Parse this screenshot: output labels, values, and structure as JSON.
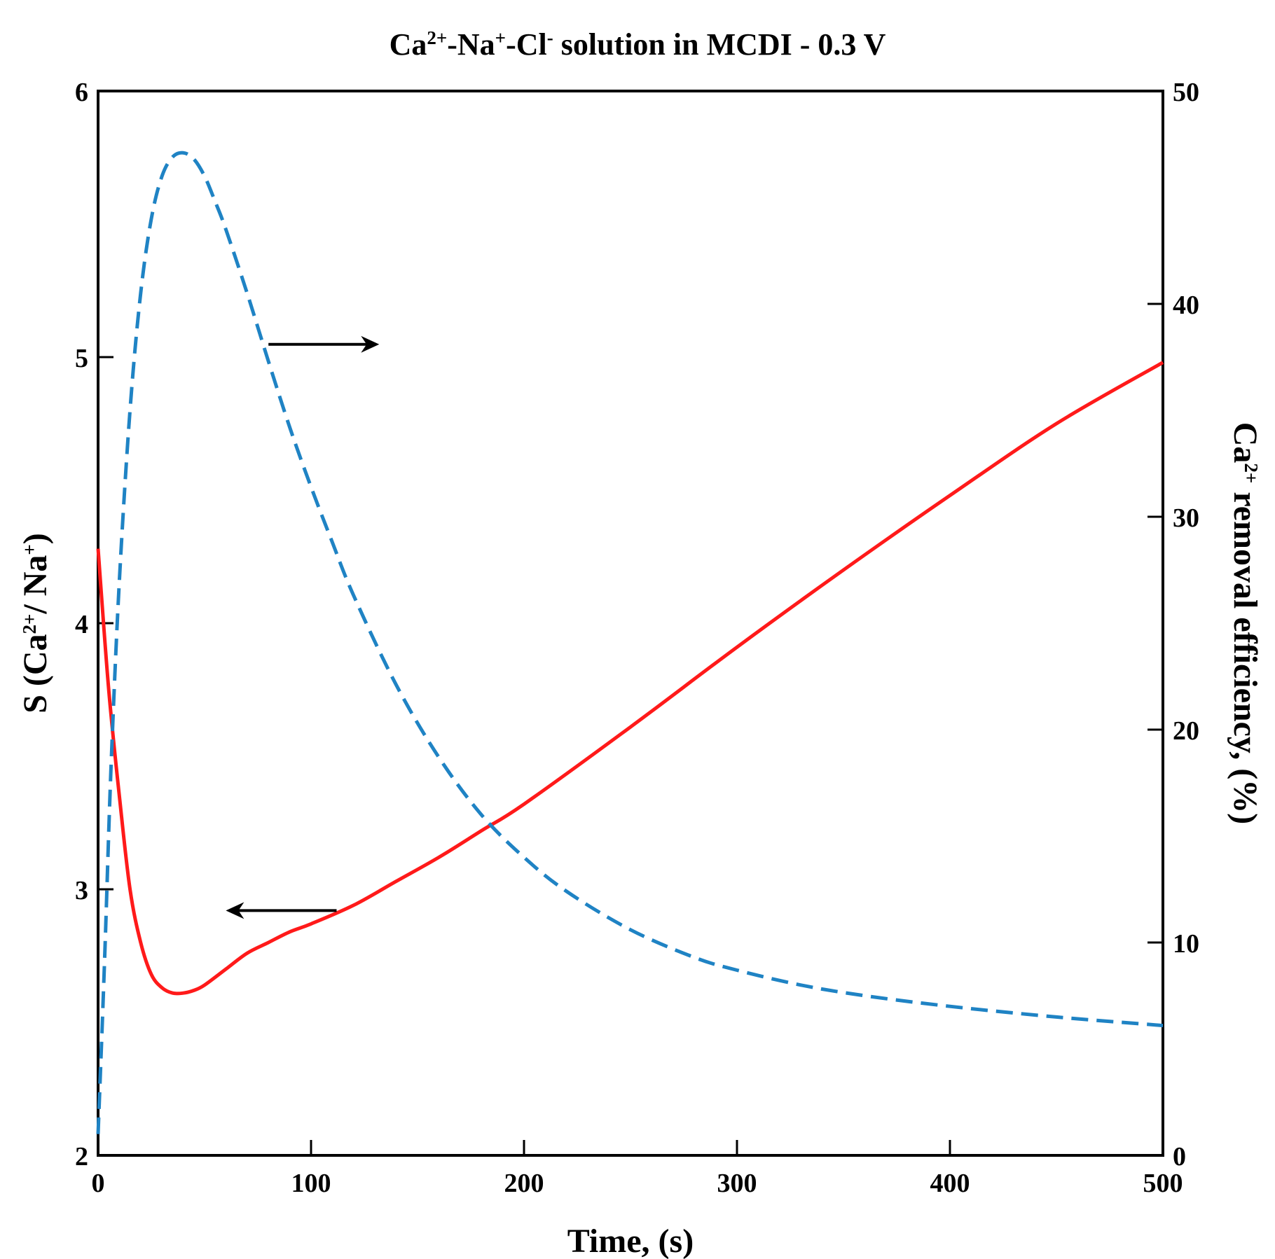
{
  "chart_data": {
    "type": "line",
    "title": {
      "parts": [
        {
          "text": "Ca",
          "sup": "2+"
        },
        {
          "text": "-Na",
          "sup": "+"
        },
        {
          "text": "-Cl",
          "sup": "-"
        },
        {
          "text": " solution in MCDI - 0.3 V",
          "sup": ""
        }
      ]
    },
    "xlabel": "Time, (s)",
    "ylabel_left": {
      "parts": [
        {
          "text": "S (Ca",
          "sup": "2+"
        },
        {
          "text": "/ Na",
          "sup": "+"
        },
        {
          "text": ")",
          "sup": ""
        }
      ]
    },
    "ylabel_right": {
      "parts": [
        {
          "text": "Ca",
          "sup": "2+"
        },
        {
          "text": " removal efficiency, (%)",
          "sup": ""
        }
      ]
    },
    "xlim": [
      0,
      500
    ],
    "ylim_left": [
      2,
      6
    ],
    "ylim_right": [
      0,
      50
    ],
    "x_ticks": [
      "0",
      "100",
      "200",
      "300",
      "400",
      "500"
    ],
    "y_ticks_left": [
      "2",
      "3",
      "4",
      "5",
      "6"
    ],
    "y_ticks_right": [
      "0",
      "10",
      "20",
      "30",
      "40",
      "50"
    ],
    "grid": false,
    "series": [
      {
        "name": "S (Ca2+/Na+)",
        "axis": "left",
        "color": "#ff1a1a",
        "style": "solid",
        "x": [
          0,
          5,
          10,
          15,
          20,
          25,
          30,
          35,
          40,
          45,
          50,
          60,
          70,
          80,
          90,
          100,
          120,
          140,
          160,
          180,
          200,
          250,
          300,
          350,
          400,
          450,
          500
        ],
        "y": [
          4.28,
          3.75,
          3.35,
          3.0,
          2.8,
          2.68,
          2.63,
          2.61,
          2.61,
          2.62,
          2.64,
          2.7,
          2.76,
          2.8,
          2.84,
          2.87,
          2.94,
          3.03,
          3.12,
          3.22,
          3.32,
          3.61,
          3.91,
          4.2,
          4.48,
          4.75,
          4.98
        ]
      },
      {
        "name": "Ca2+ removal efficiency",
        "axis": "right",
        "color": "#1f83c4",
        "style": "dashed",
        "x": [
          0,
          3,
          6,
          10,
          15,
          20,
          25,
          30,
          35,
          40,
          45,
          50,
          55,
          60,
          70,
          80,
          90,
          100,
          110,
          120,
          140,
          160,
          180,
          200,
          220,
          250,
          280,
          300,
          330,
          360,
          400,
          450,
          500
        ],
        "y": [
          1,
          9,
          18,
          27,
          35,
          40.5,
          44,
          46,
          46.9,
          47.1,
          46.8,
          46,
          44.8,
          43.5,
          40.5,
          37.3,
          34.2,
          31.4,
          28.8,
          26.3,
          22.1,
          18.7,
          16,
          14,
          12.4,
          10.6,
          9.3,
          8.7,
          8,
          7.5,
          7,
          6.5,
          6.1
        ]
      }
    ],
    "annotations": [
      {
        "type": "arrow",
        "direction": "right",
        "axis": "right",
        "x_from": 80,
        "x_to": 132,
        "y": 38.1
      },
      {
        "type": "arrow",
        "direction": "left",
        "axis": "left",
        "x_from": 112,
        "x_to": 60,
        "y": 2.92
      }
    ]
  }
}
